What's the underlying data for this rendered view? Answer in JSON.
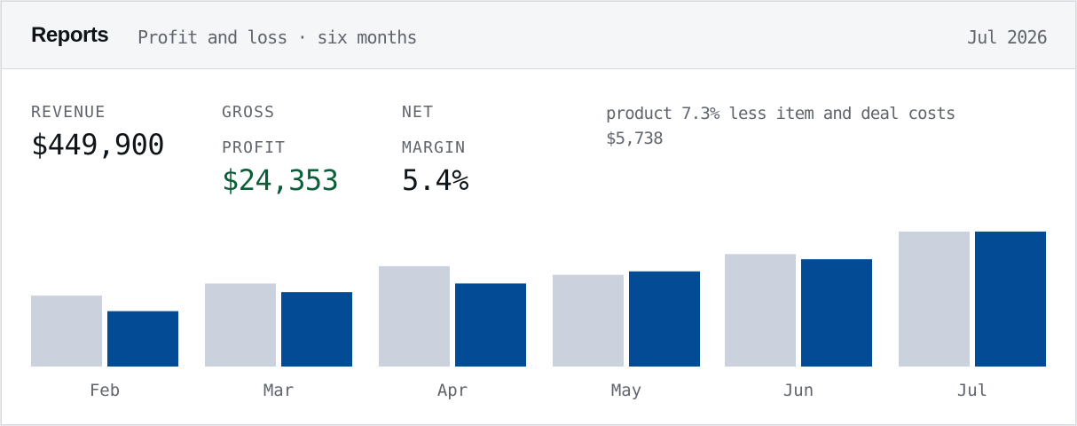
{
  "header": {
    "title": "Reports",
    "subtitle": "Profit and loss · six months",
    "period": "Jul 2026"
  },
  "kpis": {
    "revenue": {
      "label": "REVENUE",
      "value": "$449,900",
      "color": "#0f1419"
    },
    "gross_profit": {
      "label_line1": "GROSS",
      "label_line2": "PROFIT",
      "value": "$24,353",
      "color": "#0b5e38"
    },
    "net_margin": {
      "label_line1": "NET",
      "label_line2": "MARGIN",
      "value": "5.4%",
      "color": "#0f1419"
    }
  },
  "note": {
    "line1": "product 7.3% less item and deal costs",
    "line2": "$5,738"
  },
  "colors": {
    "series_a": "#cbd2de",
    "series_b": "#044b95"
  },
  "chart_data": {
    "type": "bar",
    "categories": [
      "Feb",
      "Mar",
      "Apr",
      "May",
      "Jun",
      "Jul"
    ],
    "series": [
      {
        "values": [
          82,
          96,
          116,
          106,
          130,
          156
        ]
      },
      {
        "values": [
          64,
          86,
          96,
          110,
          124,
          156
        ]
      }
    ],
    "ylim": [
      0,
      160
    ],
    "grid": false,
    "legend": "none"
  }
}
